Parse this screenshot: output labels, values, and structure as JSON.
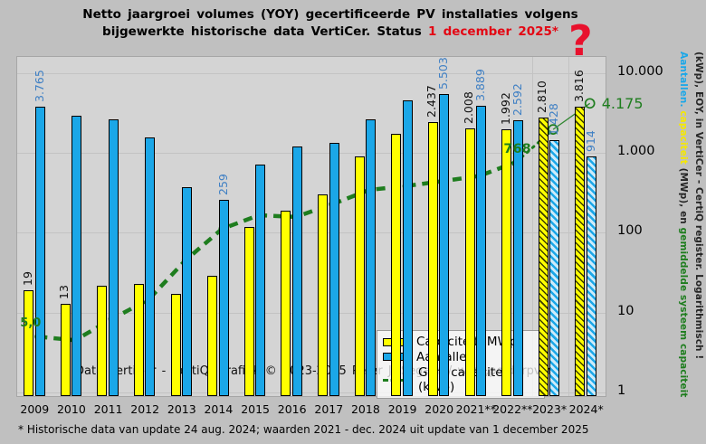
{
  "title": {
    "line1": "Netto jaargroei volumes (YOY) gecertificeerde PV installaties volgens",
    "line2_black": "bijgewerkte historische data VertiCer. Status ",
    "line2_red": "1 december 2025*"
  },
  "annotation": {
    "question_mark": "?"
  },
  "watermark": "Data VertiCer - CertiQ; grafiek © 2023-2025  Peter J. Segaar / www.polderpv.nl",
  "footnote": "* Historische data van update 24 aug. 2024; waarden 2021 - dec. 2024 uit update van 1 december 2025",
  "legend": {
    "capaciteit": "Capaciteit (MWp)",
    "aantallen": "Aantallen",
    "gem": "Gem capaciteit (kWp)"
  },
  "right_axis": {
    "ticks": [
      "10.000",
      "1.000",
      "100",
      "10",
      "1"
    ],
    "title_col_left_segments": [
      {
        "text": "Aantallen.",
        "color": "#1BA7E8"
      },
      {
        "text": " capaciteit",
        "color": "#F5E800"
      },
      {
        "text": " (MWp), en ",
        "color": "#262626"
      },
      {
        "text": "gemiddelde systeem capaciteit",
        "color": "#1E7D1E"
      }
    ],
    "title_col_right": "(kWp), EOY, in VertiCer - CertiQ register. Logarithmisch !"
  },
  "colors": {
    "capaciteit": "#FFFF00",
    "aantallen": "#1BA7E8",
    "gem_line": "#1E7D1E",
    "aantal_label": "#4080C4",
    "red_accent": "#E30613"
  },
  "chart_data": {
    "type": "bar",
    "log_scale": true,
    "ylim": [
      1,
      17000
    ],
    "grid": "horizontal-decades",
    "legend_position": "center",
    "categories": [
      "2009",
      "2010",
      "2011",
      "2012",
      "2013",
      "2014",
      "2015",
      "2016",
      "2017",
      "2018",
      "2019",
      "2020",
      "2021**",
      "2022**",
      "2023*",
      "2024*"
    ],
    "series": [
      {
        "name": "Capaciteit (MWp)",
        "type": "bar",
        "values": [
          19,
          13,
          22,
          23,
          17,
          29,
          119,
          190,
          306,
          904,
          1750,
          2437,
          2008,
          1992,
          2810,
          3816
        ],
        "labels": {
          "0": "19",
          "1": "13",
          "11": "2.437",
          "12": "2.008",
          "13": "1.992",
          "14": "2.810",
          "15": "3.816"
        },
        "hatched_from_index": 14
      },
      {
        "name": "Aantallen",
        "type": "bar",
        "values": [
          3765,
          2919,
          2655,
          1577,
          377,
          259,
          715,
          1200,
          1340,
          2630,
          4550,
          5503,
          3889,
          2592,
          1428,
          914
        ],
        "labels": {
          "0": "3.765",
          "5": "259",
          "11": "5.503",
          "12": "3.889",
          "13": "2.592",
          "14": "1.428",
          "15": "914"
        },
        "hatched_from_index": 14
      },
      {
        "name": "Gem capaciteit (kWp)",
        "type": "line",
        "values": [
          5.0,
          4.5,
          8.3,
          14.6,
          45,
          112,
          166,
          158,
          228,
          344,
          385,
          443,
          516,
          768,
          1968,
          4175
        ],
        "labels": {
          "0": "5,0",
          "13": "768",
          "15": "4.175"
        },
        "open_marker_from_index": 14
      }
    ]
  }
}
